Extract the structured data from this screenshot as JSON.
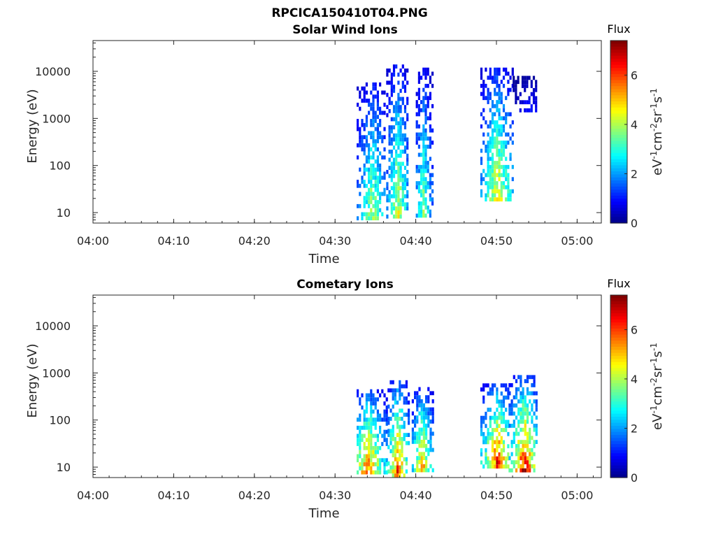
{
  "figure": {
    "title": "RPCICA150410T04.PNG"
  },
  "colorbar": {
    "title": "Flux",
    "label": "eV-1cm-2sr-1s-1",
    "ticks": [
      "0",
      "2",
      "4",
      "6"
    ],
    "range": [
      0,
      7.4
    ],
    "colormap": [
      "#00007f",
      "#0000ff",
      "#007fff",
      "#00ffff",
      "#7fff7f",
      "#ffff00",
      "#ff7f00",
      "#ff0000",
      "#7f0000"
    ]
  },
  "chart_data": [
    {
      "type": "heatmap",
      "title": "Solar Wind Ions",
      "xlabel": "Time",
      "ylabel": "Energy (eV)",
      "x_ticks": [
        "04:00",
        "04:10",
        "04:20",
        "04:30",
        "04:40",
        "04:50",
        "05:00"
      ],
      "xlim": [
        "04:00",
        "05:03"
      ],
      "y_ticks": [
        "10",
        "100",
        "1000",
        "10000"
      ],
      "ylim": [
        6,
        45000
      ],
      "y_scale": "log",
      "bursts": [
        {
          "start": "04:32:40",
          "end": "04:36:00",
          "peak_time": "04:34:30",
          "lo_energy": 7,
          "hi_energy": 5800,
          "peak_flux": 4.6
        },
        {
          "start": "04:36:20",
          "end": "04:39:00",
          "peak_time": "04:37:40",
          "lo_energy": 8,
          "hi_energy": 14000,
          "peak_flux": 4.9
        },
        {
          "start": "04:40:00",
          "end": "04:42:00",
          "peak_time": "04:40:50",
          "lo_energy": 8,
          "hi_energy": 12000,
          "peak_flux": 4.2
        },
        {
          "start": "04:48:00",
          "end": "04:52:00",
          "peak_time": "04:50:00",
          "lo_energy": 18,
          "hi_energy": 12000,
          "peak_flux": 5.2
        },
        {
          "start": "04:52:00",
          "end": "04:55:00",
          "peak_time": "04:54:00",
          "lo_energy": 1500,
          "hi_energy": 8000,
          "peak_flux": 1.3
        }
      ]
    },
    {
      "type": "heatmap",
      "title": "Cometary Ions",
      "xlabel": "Time",
      "ylabel": "Energy (eV)",
      "x_ticks": [
        "04:00",
        "04:10",
        "04:20",
        "04:30",
        "04:40",
        "04:50",
        "05:00"
      ],
      "xlim": [
        "04:00",
        "05:03"
      ],
      "y_ticks": [
        "10",
        "100",
        "1000",
        "10000"
      ],
      "ylim": [
        6,
        45000
      ],
      "y_scale": "log",
      "bursts": [
        {
          "start": "04:32:40",
          "end": "04:36:30",
          "peak_time": "04:34:00",
          "lo_energy": 7,
          "hi_energy": 450,
          "peak_flux": 6.6
        },
        {
          "start": "04:36:30",
          "end": "04:39:00",
          "peak_time": "04:37:40",
          "lo_energy": 7,
          "hi_energy": 700,
          "peak_flux": 6.8
        },
        {
          "start": "04:39:30",
          "end": "04:42:00",
          "peak_time": "04:40:40",
          "lo_energy": 8,
          "hi_energy": 500,
          "peak_flux": 6.0
        },
        {
          "start": "04:48:00",
          "end": "04:51:30",
          "peak_time": "04:50:00",
          "lo_energy": 10,
          "hi_energy": 600,
          "peak_flux": 7.2
        },
        {
          "start": "04:51:30",
          "end": "04:55:00",
          "peak_time": "04:53:20",
          "lo_energy": 8,
          "hi_energy": 900,
          "peak_flux": 7.4
        }
      ]
    }
  ]
}
